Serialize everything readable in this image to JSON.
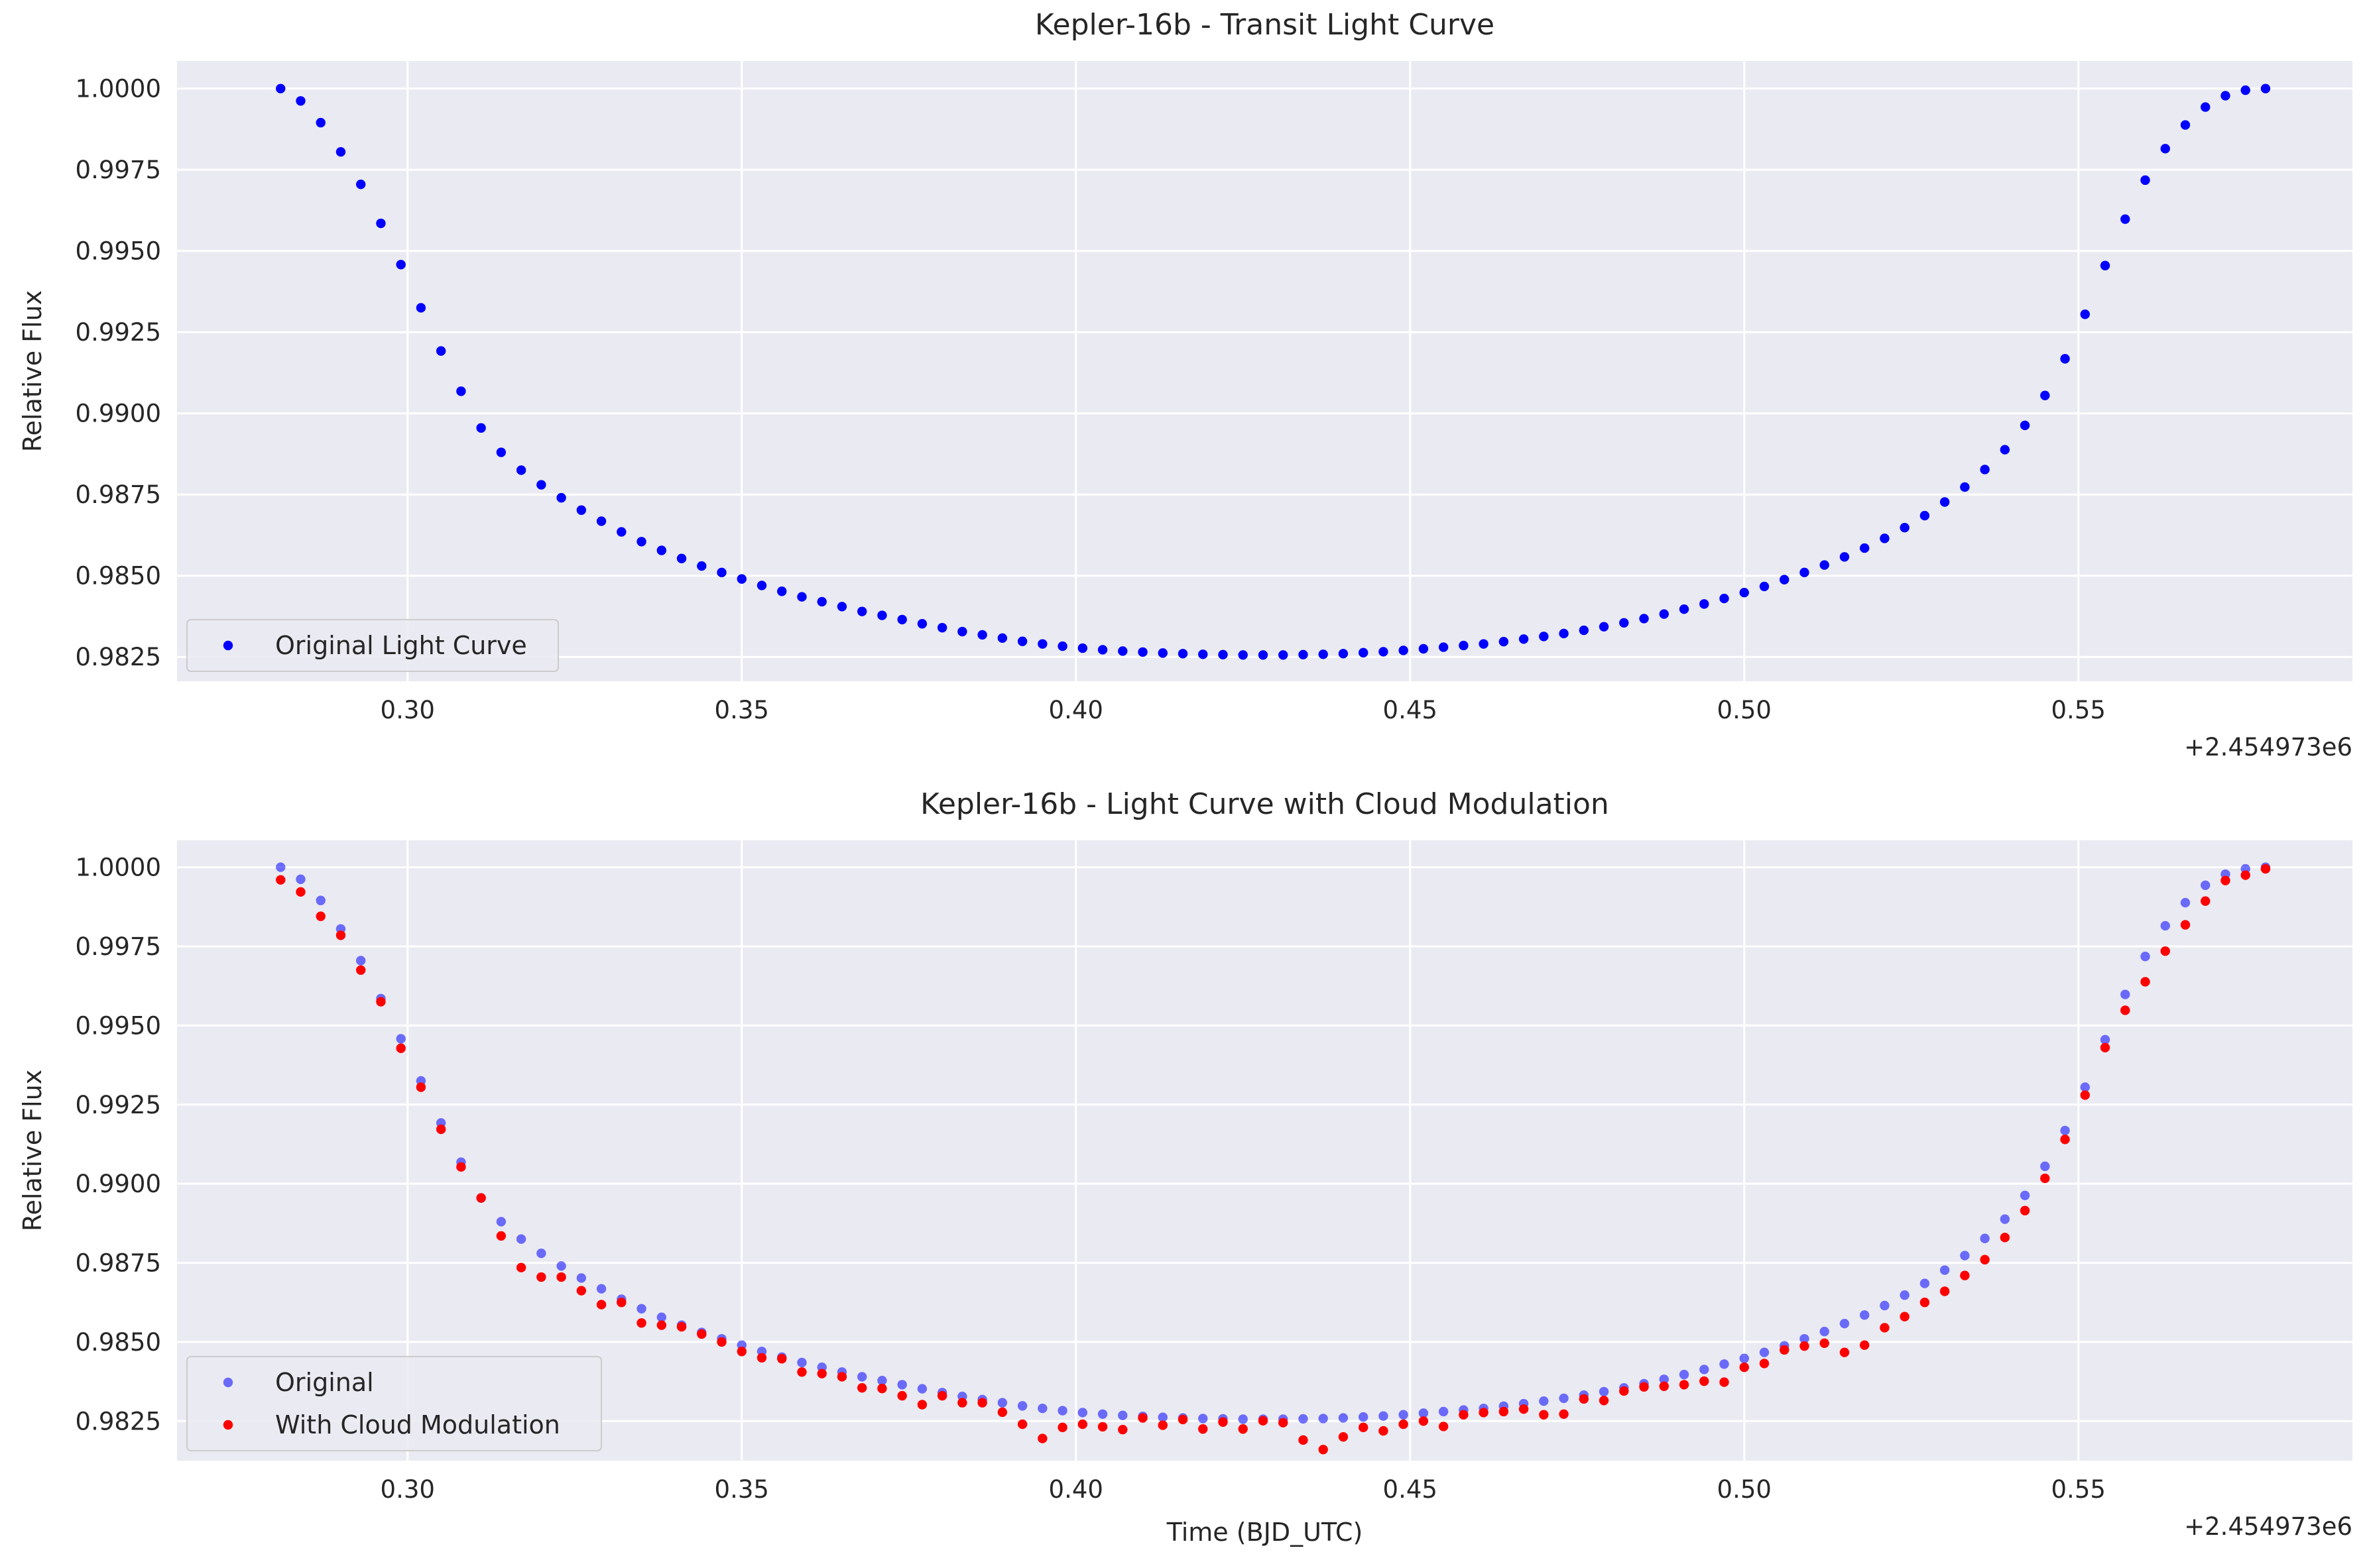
{
  "chart_data": [
    {
      "type": "scatter",
      "title": "Kepler-16b - Transit Light Curve",
      "xlabel": "",
      "ylabel": "Relative Flux",
      "x_offset_label": "+2.454973e6",
      "xlim": [
        0.2655,
        0.591
      ],
      "ylim": [
        0.98175,
        1.00085
      ],
      "xticks": [
        0.3,
        0.35,
        0.4,
        0.45,
        0.5,
        0.55
      ],
      "xtick_labels": [
        "0.30",
        "0.35",
        "0.40",
        "0.45",
        "0.50",
        "0.55"
      ],
      "yticks": [
        0.9825,
        0.985,
        0.9875,
        0.99,
        0.9925,
        0.995,
        0.9975,
        1.0
      ],
      "ytick_labels": [
        "0.9825",
        "0.9850",
        "0.9875",
        "0.9900",
        "0.9925",
        "0.9950",
        "0.9975",
        "1.0000"
      ],
      "grid": true,
      "legend_position": "lower left",
      "series": [
        {
          "name": "Original Light Curve",
          "color": "#0000ff",
          "opacity": 1.0,
          "x": [
            0.281,
            0.284,
            0.287,
            0.29,
            0.293,
            0.296,
            0.299,
            0.302,
            0.305,
            0.308,
            0.311,
            0.314,
            0.317,
            0.32,
            0.323,
            0.326,
            0.329,
            0.332,
            0.335,
            0.338,
            0.341,
            0.344,
            0.347,
            0.35,
            0.353,
            0.356,
            0.359,
            0.362,
            0.365,
            0.368,
            0.371,
            0.374,
            0.377,
            0.38,
            0.383,
            0.386,
            0.389,
            0.392,
            0.395,
            0.398,
            0.401,
            0.404,
            0.407,
            0.41,
            0.413,
            0.416,
            0.419,
            0.422,
            0.425,
            0.428,
            0.431,
            0.434,
            0.437,
            0.44,
            0.443,
            0.446,
            0.449,
            0.452,
            0.455,
            0.458,
            0.461,
            0.464,
            0.467,
            0.47,
            0.473,
            0.476,
            0.479,
            0.482,
            0.485,
            0.488,
            0.491,
            0.494,
            0.497,
            0.5,
            0.503,
            0.506,
            0.509,
            0.512,
            0.515,
            0.518,
            0.521,
            0.524,
            0.527,
            0.53,
            0.533,
            0.536,
            0.539,
            0.542,
            0.545,
            0.548,
            0.551,
            0.554,
            0.557,
            0.56,
            0.563,
            0.566,
            0.569,
            0.572,
            0.575,
            0.578
          ],
          "y": [
            1.0,
            0.99962,
            0.99895,
            0.99805,
            0.99705,
            0.99585,
            0.99458,
            0.99325,
            0.99192,
            0.99068,
            0.98955,
            0.9888,
            0.98825,
            0.9878,
            0.9874,
            0.98702,
            0.98668,
            0.98635,
            0.98605,
            0.98578,
            0.98553,
            0.9853,
            0.9851,
            0.9849,
            0.9847,
            0.98452,
            0.98435,
            0.9842,
            0.98405,
            0.9839,
            0.98378,
            0.98365,
            0.98352,
            0.9834,
            0.98328,
            0.98318,
            0.98308,
            0.98298,
            0.9829,
            0.98283,
            0.98277,
            0.98272,
            0.98268,
            0.98265,
            0.98262,
            0.9826,
            0.98258,
            0.98257,
            0.98256,
            0.98256,
            0.98256,
            0.98257,
            0.98258,
            0.9826,
            0.98263,
            0.98266,
            0.9827,
            0.98275,
            0.9828,
            0.98285,
            0.9829,
            0.98297,
            0.98305,
            0.98313,
            0.98322,
            0.98332,
            0.98343,
            0.98355,
            0.98368,
            0.98382,
            0.98397,
            0.98413,
            0.9843,
            0.98448,
            0.98467,
            0.98488,
            0.9851,
            0.98533,
            0.98558,
            0.98585,
            0.98615,
            0.98648,
            0.98685,
            0.98727,
            0.98773,
            0.98827,
            0.98888,
            0.98963,
            0.99055,
            0.99168,
            0.99305,
            0.99455,
            0.99598,
            0.99718,
            0.99815,
            0.99888,
            0.99943,
            0.99978,
            0.99995,
            1.0
          ]
        }
      ]
    },
    {
      "type": "scatter",
      "title": "Kepler-16b - Light Curve with Cloud Modulation",
      "xlabel": "Time (BJD_UTC)",
      "ylabel": "Relative Flux",
      "x_offset_label": "+2.454973e6",
      "xlim": [
        0.2655,
        0.591
      ],
      "ylim": [
        0.98125,
        1.00085
      ],
      "xticks": [
        0.3,
        0.35,
        0.4,
        0.45,
        0.5,
        0.55
      ],
      "xtick_labels": [
        "0.30",
        "0.35",
        "0.40",
        "0.45",
        "0.50",
        "0.55"
      ],
      "yticks": [
        0.9825,
        0.985,
        0.9875,
        0.99,
        0.9925,
        0.995,
        0.9975,
        1.0
      ],
      "ytick_labels": [
        "0.9825",
        "0.9850",
        "0.9875",
        "0.9900",
        "0.9925",
        "0.9950",
        "0.9975",
        "1.0000"
      ],
      "grid": true,
      "legend_position": "lower left",
      "series": [
        {
          "name": "Original",
          "color": "#0000ff",
          "opacity": 0.55,
          "x": "same as panel 1",
          "y": "same as panel 1"
        },
        {
          "name": "With Cloud Modulation",
          "color": "#ff0000",
          "opacity": 1.0,
          "x": "same as panel 1",
          "y_delta": [
            -0.0004,
            -0.0004,
            -0.0005,
            -0.0002,
            -0.0003,
            -0.0001,
            -0.0003,
            -0.0002,
            -0.0002,
            -0.00015,
            0.0,
            -0.00045,
            -0.0009,
            -0.00075,
            -0.00035,
            -0.0004,
            -0.0005,
            -0.0001,
            -0.00045,
            -0.00025,
            -5e-05,
            -5e-05,
            -0.0001,
            -0.0002,
            -0.0002,
            -5e-05,
            -0.0003,
            -0.0002,
            -0.00015,
            -0.00035,
            -0.00025,
            -0.00035,
            -0.0005,
            -0.0001,
            -0.0002,
            -0.0001,
            -0.0003,
            -0.00058,
            -0.00095,
            -0.00053,
            -0.00037,
            -0.0004,
            -0.00045,
            -5e-05,
            -0.00025,
            -5e-05,
            -0.00033,
            -0.0001,
            -0.00031,
            -5e-05,
            -0.00011,
            -0.00067,
            -0.00098,
            -0.0006,
            -0.00033,
            -0.00047,
            -0.0003,
            -0.00025,
            -0.00047,
            -0.00015,
            -0.00013,
            -0.00017,
            -0.00017,
            -0.00043,
            -0.0005,
            -0.00012,
            -0.00028,
            -0.0001,
            -0.0001,
            -0.00022,
            -0.00032,
            -0.00037,
            -0.00057,
            -0.00028,
            -0.00035,
            -0.00013,
            -0.00023,
            -0.00037,
            -0.00091,
            -0.00095,
            -0.0007,
            -0.00068,
            -0.0006,
            -0.00067,
            -0.00063,
            -0.00067,
            -0.00058,
            -0.00048,
            -0.00038,
            -0.00028,
            -0.00025,
            -0.00025,
            -0.0005,
            -0.0008,
            -0.0008,
            -0.0007,
            -0.0005,
            -0.0002,
            -0.0002,
            -5e-05
          ]
        }
      ]
    }
  ]
}
